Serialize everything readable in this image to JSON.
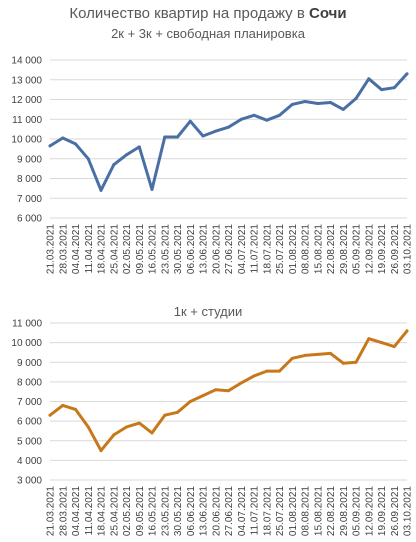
{
  "header": {
    "title_prefix": "Количество квартир на продажу в",
    "title_city": "Сочи"
  },
  "chart_data": [
    {
      "type": "line",
      "title": "2к + 3к + свободная планировка",
      "color": "#4a6fa5",
      "ylim": [
        6000,
        14000
      ],
      "yticks": [
        "6 000",
        "7 000",
        "8 000",
        "9 000",
        "10 000",
        "11 000",
        "12 000",
        "13 000",
        "14 000"
      ],
      "xtick_labels": [
        "21.03.2021",
        "28.03.2021",
        "04.04.2021",
        "11.04.2021",
        "18.04.2021",
        "25.04.2021",
        "02.05.2021",
        "09.05.2021",
        "16.05.2021",
        "23.05.2021",
        "30.05.2021",
        "06.06.2021",
        "13.06.2021",
        "20.06.2021",
        "27.06.2021",
        "04.07.2021",
        "11.07.2021",
        "18.07.2021",
        "25.07.2021",
        "01.08.2021",
        "08.08.2021",
        "15.08.2021",
        "22.08.2021",
        "29.08.2021",
        "05.09.2021",
        "12.09.2021",
        "19.09.2021",
        "26.09.2021",
        "03.10.2021"
      ],
      "values": [
        9650,
        10050,
        9750,
        9000,
        7400,
        8700,
        9200,
        9600,
        7450,
        10100,
        10100,
        10900,
        10150,
        10400,
        10600,
        11000,
        11200,
        10950,
        11200,
        11750,
        11900,
        11800,
        11850,
        11500,
        12050,
        13050,
        12500,
        12600,
        13300
      ]
    },
    {
      "type": "line",
      "title": "1к + студии",
      "color": "#c8781a",
      "ylim": [
        3000,
        11000
      ],
      "yticks": [
        "3 000",
        "4 000",
        "5 000",
        "6 000",
        "7 000",
        "8 000",
        "9 000",
        "10 000",
        "11 000"
      ],
      "xtick_labels": [
        "21.03.2021",
        "28.03.2021",
        "04.04.2021",
        "11.04.2021",
        "18.04.2021",
        "25.04.2021",
        "02.05.2021",
        "09.05.2021",
        "16.05.2021",
        "23.05.2021",
        "30.05.2021",
        "06.06.2021",
        "13.06.2021",
        "20.06.2021",
        "27.06.2021",
        "04.07.2021",
        "11.07.2021",
        "18.07.2021",
        "25.07.2021",
        "01.08.2021",
        "08.08.2021",
        "15.08.2021",
        "22.08.2021",
        "29.08.2021",
        "05.09.2021",
        "12.09.2021",
        "19.09.2021",
        "26.09.2021",
        "03.10.2021"
      ],
      "values": [
        6300,
        6800,
        6600,
        5700,
        4500,
        5300,
        5700,
        5900,
        5400,
        6300,
        6450,
        7000,
        7300,
        7600,
        7550,
        7950,
        8300,
        8550,
        8550,
        9200,
        9350,
        9400,
        9450,
        8950,
        9000,
        10200,
        10000,
        9800,
        10600
      ]
    }
  ]
}
